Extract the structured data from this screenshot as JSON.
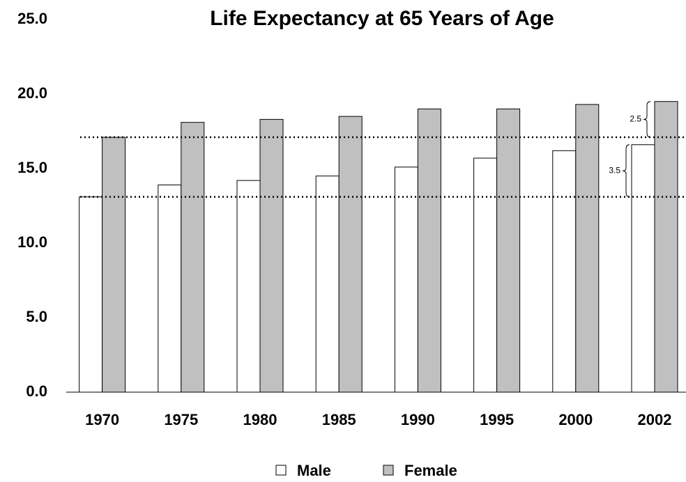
{
  "chart_data": {
    "type": "bar",
    "title": "Life Expectancy at 65 Years of Age",
    "categories": [
      "1970",
      "1975",
      "1980",
      "1985",
      "1990",
      "1995",
      "2000",
      "2002"
    ],
    "series": [
      {
        "name": "Male",
        "color": "#ffffff",
        "values": [
          13.1,
          13.9,
          14.2,
          14.5,
          15.1,
          15.7,
          16.2,
          16.6
        ]
      },
      {
        "name": "Female",
        "color": "#c0c0c0",
        "values": [
          17.1,
          18.1,
          18.3,
          18.5,
          19.0,
          19.0,
          19.3,
          19.5
        ]
      }
    ],
    "ylim": [
      0,
      25
    ],
    "yticks": [
      {
        "value": 0,
        "label": "0.0"
      },
      {
        "value": 5,
        "label": "5.0"
      },
      {
        "value": 10,
        "label": "10.0"
      },
      {
        "value": 15,
        "label": "15.0"
      },
      {
        "value": 20,
        "label": "20.0"
      },
      {
        "value": 25,
        "label": "25.0"
      }
    ],
    "reference_lines": [
      13.1,
      17.1
    ],
    "annotations": [
      {
        "text": "2.5",
        "from": 17.1,
        "to": 19.5
      },
      {
        "text": "3.5",
        "from": 13.1,
        "to": 16.6
      }
    ],
    "legend": "bottom"
  }
}
